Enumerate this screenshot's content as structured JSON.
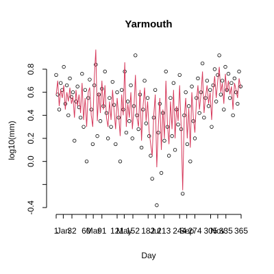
{
  "chart_data": {
    "type": "line",
    "title": "Yarmouth",
    "xlabel": "Day",
    "ylabel": "log10(mm)",
    "x": [
      1,
      4,
      7,
      10,
      13,
      16,
      19,
      22,
      25,
      28,
      31,
      34,
      37,
      40,
      43,
      46,
      49,
      52,
      55,
      58,
      61,
      64,
      67,
      70,
      73,
      76,
      79,
      82,
      85,
      88,
      91,
      94,
      97,
      100,
      103,
      106,
      109,
      112,
      115,
      118,
      121,
      124,
      127,
      130,
      133,
      136,
      139,
      142,
      145,
      148,
      151,
      154,
      157,
      160,
      163,
      166,
      169,
      172,
      175,
      178,
      181,
      184,
      187,
      190,
      193,
      196,
      199,
      202,
      205,
      208,
      211,
      214,
      217,
      220,
      223,
      226,
      229,
      232,
      235,
      238,
      241,
      244,
      247,
      250,
      253,
      256,
      259,
      262,
      265,
      268,
      271,
      274,
      277,
      280,
      283,
      286,
      289,
      292,
      295,
      298,
      301,
      304,
      307,
      310,
      313,
      316,
      319,
      322,
      325,
      328,
      331,
      334,
      337,
      340,
      343,
      346,
      349,
      352,
      355,
      358,
      361,
      364
    ],
    "series": [
      {
        "style": "points",
        "color": "#000000",
        "values": [
          0.75,
          0.58,
          0.45,
          0.68,
          0.62,
          0.82,
          0.5,
          0.66,
          0.4,
          0.72,
          0.56,
          0.6,
          0.18,
          0.52,
          0.65,
          0.47,
          0.38,
          0.76,
          0.3,
          0.62,
          0.0,
          0.55,
          0.71,
          0.45,
          0.15,
          0.66,
          0.84,
          0.22,
          0.58,
          0.35,
          0.63,
          0.48,
          0.78,
          0.42,
          0.2,
          0.55,
          0.3,
          0.69,
          0.49,
          0.15,
          0.6,
          0.38,
          0.0,
          0.62,
          0.45,
          0.78,
          0.25,
          0.52,
          0.35,
          0.66,
          0.2,
          0.48,
          0.92,
          0.4,
          0.28,
          0.58,
          0.12,
          0.45,
          0.7,
          0.33,
          0.55,
          0.22,
          0.05,
          -0.15,
          0.38,
          0.62,
          -0.38,
          0.25,
          0.5,
          -0.1,
          0.42,
          0.18,
          0.78,
          0.3,
          0.05,
          0.55,
          0.22,
          0.68,
          0.1,
          0.45,
          0.32,
          0.75,
          0.28,
          -0.28,
          0.4,
          0.6,
          0.15,
          0.48,
          0.0,
          0.65,
          0.35,
          0.2,
          0.55,
          0.72,
          0.42,
          0.6,
          0.85,
          0.38,
          0.55,
          0.7,
          0.48,
          0.62,
          0.3,
          0.66,
          0.8,
          0.52,
          0.75,
          0.92,
          0.58,
          0.7,
          0.45,
          0.82,
          0.62,
          0.76,
          0.55,
          0.68,
          0.4,
          0.72,
          0.6,
          0.5,
          0.78,
          0.65
        ]
      },
      {
        "style": "line",
        "color": "#d6395b",
        "values": [
          0.58,
          0.7,
          0.48,
          0.62,
          0.55,
          0.66,
          0.45,
          0.6,
          0.52,
          0.64,
          0.5,
          0.56,
          0.38,
          0.62,
          0.48,
          0.58,
          0.42,
          0.68,
          0.36,
          0.55,
          0.3,
          0.6,
          0.64,
          0.4,
          0.3,
          0.72,
          0.97,
          0.35,
          0.6,
          0.42,
          0.7,
          0.45,
          0.66,
          0.38,
          0.3,
          0.52,
          0.36,
          0.62,
          0.44,
          0.28,
          0.55,
          0.4,
          0.22,
          0.58,
          0.4,
          0.86,
          0.3,
          0.5,
          0.38,
          0.6,
          0.28,
          0.46,
          0.75,
          0.38,
          0.3,
          0.62,
          0.18,
          0.48,
          0.64,
          0.35,
          0.52,
          0.26,
          0.15,
          0.05,
          0.4,
          0.58,
          -0.05,
          0.3,
          0.55,
          0.1,
          0.45,
          0.2,
          0.7,
          0.32,
          0.15,
          0.52,
          0.28,
          0.62,
          0.2,
          0.48,
          0.35,
          0.66,
          0.3,
          -0.25,
          0.38,
          0.55,
          0.2,
          0.46,
          0.12,
          0.6,
          0.38,
          0.25,
          0.52,
          0.66,
          0.45,
          0.58,
          0.78,
          0.42,
          0.56,
          0.66,
          0.5,
          0.6,
          0.36,
          0.62,
          0.74,
          0.55,
          0.7,
          0.82,
          0.6,
          0.68,
          0.5,
          0.76,
          0.6,
          0.7,
          0.58,
          0.65,
          0.45,
          0.68,
          0.62,
          0.55,
          0.72,
          0.64
        ]
      }
    ],
    "xlim": [
      1,
      365
    ],
    "xticks": [
      1,
      {
        "value": 15,
        "label": "Jan"
      },
      32,
      60,
      {
        "value": 74,
        "label": "Mar"
      },
      91,
      121,
      {
        "value": 135,
        "label": "May"
      },
      152,
      182,
      {
        "value": 196,
        "label": "Jul"
      },
      213,
      244,
      {
        "value": 258,
        "label": "Sep"
      },
      274,
      305,
      {
        "value": 319,
        "label": "Nov"
      },
      335,
      365
    ],
    "ylim": [
      -0.4,
      0.8
    ],
    "yticks": [
      {
        "value": -0.4,
        "label": "-0.4"
      },
      {
        "value": -0.2,
        "label": null
      },
      {
        "value": 0.0,
        "label": "0.0"
      },
      0.2,
      0.4,
      0.6,
      0.8
    ],
    "grid": false
  }
}
